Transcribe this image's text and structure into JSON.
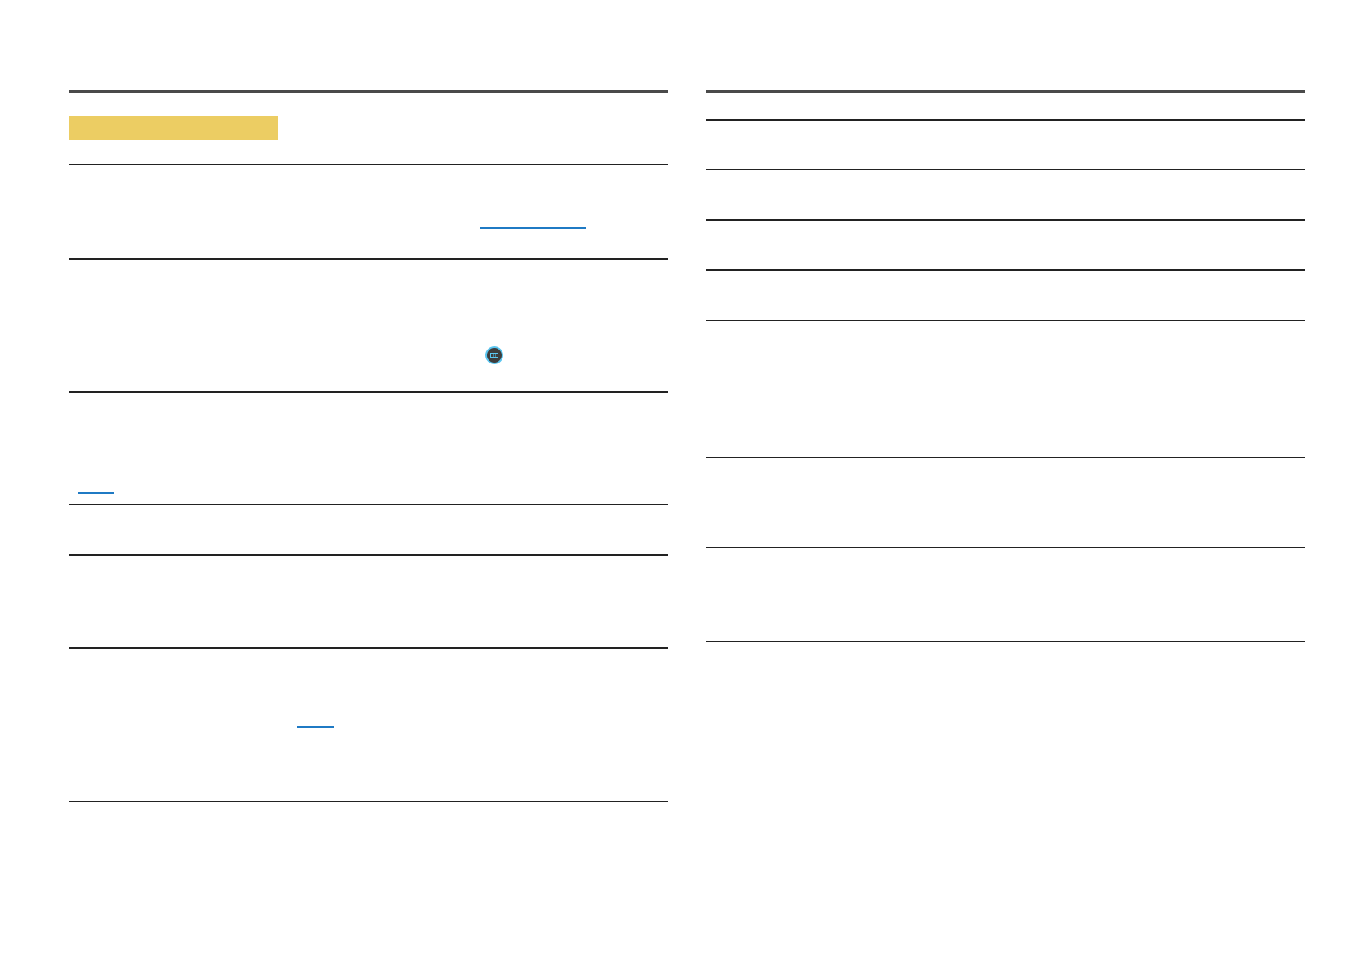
{
  "colors": {
    "header_rule": "#4a4a4a",
    "row_rule": "#222222",
    "highlight_bar": "#eccd63",
    "link_underline": "#1f7ac4",
    "icon_ring": "#5bc6f0",
    "icon_fill": "#3d3d3d"
  },
  "icons": {
    "menu_button": "menu-button-icon"
  }
}
